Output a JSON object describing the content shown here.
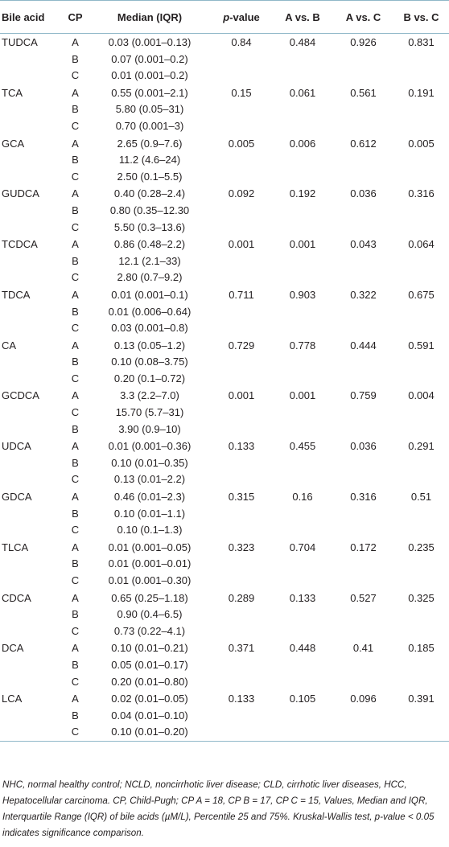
{
  "table": {
    "headers": {
      "bile_acid": "Bile acid",
      "cp": "CP",
      "median": "Median (IQR)",
      "p_value_italic": "p",
      "p_value_rest": "-value",
      "a_vs_b": "A vs. B",
      "a_vs_c": "A vs. C",
      "b_vs_c": "B vs. C"
    },
    "groups": [
      {
        "acid": "TUDCA",
        "p": "0.84",
        "ab": "0.484",
        "ac": "0.926",
        "bc": "0.831",
        "rows": [
          {
            "cp": "A",
            "median": "0.03 (0.001–0.13)"
          },
          {
            "cp": "B",
            "median": "0.07 (0.001–0.2)"
          },
          {
            "cp": "C",
            "median": "0.01 (0.001–0.2)"
          }
        ]
      },
      {
        "acid": "TCA",
        "p": "0.15",
        "ab": "0.061",
        "ac": "0.561",
        "bc": "0.191",
        "rows": [
          {
            "cp": "A",
            "median": "0.55 (0.001–2.1)"
          },
          {
            "cp": "B",
            "median": "5.80 (0.05–31)"
          },
          {
            "cp": "C",
            "median": "0.70 (0.001–3)"
          }
        ]
      },
      {
        "acid": "GCA",
        "p": "0.005",
        "ab": "0.006",
        "ac": "0.612",
        "bc": "0.005",
        "rows": [
          {
            "cp": "A",
            "median": "2.65 (0.9–7.6)"
          },
          {
            "cp": "B",
            "median": "11.2 (4.6–24)"
          },
          {
            "cp": "C",
            "median": "2.50 (0.1–5.5)"
          }
        ]
      },
      {
        "acid": "GUDCA",
        "p": "0.092",
        "ab": "0.192",
        "ac": "0.036",
        "bc": "0.316",
        "rows": [
          {
            "cp": "A",
            "median": "0.40 (0.28–2.4)"
          },
          {
            "cp": "B",
            "median": "0.80 (0.35–12.30"
          },
          {
            "cp": "C",
            "median": "5.50 (0.3–13.6)"
          }
        ]
      },
      {
        "acid": "TCDCA",
        "p": "0.001",
        "ab": "0.001",
        "ac": "0.043",
        "bc": "0.064",
        "rows": [
          {
            "cp": "A",
            "median": "0.86 (0.48–2.2)"
          },
          {
            "cp": "B",
            "median": "12.1 (2.1–33)"
          },
          {
            "cp": "C",
            "median": "2.80 (0.7–9.2)"
          }
        ]
      },
      {
        "acid": "TDCA",
        "p": "0.711",
        "ab": "0.903",
        "ac": "0.322",
        "bc": "0.675",
        "rows": [
          {
            "cp": "A",
            "median": "0.01 (0.001–0.1)"
          },
          {
            "cp": "B",
            "median": "0.01 (0.006–0.64)"
          },
          {
            "cp": "C",
            "median": "0.03 (0.001–0.8)"
          }
        ]
      },
      {
        "acid": "CA",
        "p": "0.729",
        "ab": "0.778",
        "ac": "0.444",
        "bc": "0.591",
        "rows": [
          {
            "cp": "A",
            "median": "0.13 (0.05–1.2)"
          },
          {
            "cp": "B",
            "median": "0.10 (0.08–3.75)"
          },
          {
            "cp": "C",
            "median": "0.20 (0.1–0.72)"
          }
        ]
      },
      {
        "acid": "GCDCA",
        "p": "0.001",
        "ab": "0.001",
        "ac": "0.759",
        "bc": "0.004",
        "rows": [
          {
            "cp": "A",
            "median": "3.3 (2.2–7.0)"
          },
          {
            "cp": "C",
            "median": "15.70 (5.7–31)"
          },
          {
            "cp": "B",
            "median": "3.90 (0.9–10)"
          }
        ]
      },
      {
        "acid": "UDCA",
        "p": "0.133",
        "ab": "0.455",
        "ac": "0.036",
        "bc": "0.291",
        "rows": [
          {
            "cp": "A",
            "median": "0.01 (0.001–0.36)"
          },
          {
            "cp": "B",
            "median": "0.10 (0.01–0.35)"
          },
          {
            "cp": "C",
            "median": "0.13 (0.01–2.2)"
          }
        ]
      },
      {
        "acid": "GDCA",
        "p": "0.315",
        "ab": "0.16",
        "ac": "0.316",
        "bc": "0.51",
        "rows": [
          {
            "cp": "A",
            "median": "0.46 (0.01–2.3)"
          },
          {
            "cp": "B",
            "median": "0.10 (0.01–1.1)"
          },
          {
            "cp": "C",
            "median": "0.10 (0.1–1.3)"
          }
        ]
      },
      {
        "acid": "TLCA",
        "p": "0.323",
        "ab": "0.704",
        "ac": "0.172",
        "bc": "0.235",
        "rows": [
          {
            "cp": "A",
            "median": "0.01 (0.001–0.05)"
          },
          {
            "cp": "B",
            "median": "0.01 (0.001–0.01)"
          },
          {
            "cp": "C",
            "median": "0.01 (0.001–0.30)"
          }
        ]
      },
      {
        "acid": "CDCA",
        "p": "0.289",
        "ab": "0.133",
        "ac": "0.527",
        "bc": "0.325",
        "rows": [
          {
            "cp": "A",
            "median": "0.65 (0.25–1.18)"
          },
          {
            "cp": "B",
            "median": "0.90 (0.4–6.5)"
          },
          {
            "cp": "C",
            "median": "0.73 (0.22–4.1)"
          }
        ]
      },
      {
        "acid": "DCA",
        "p": "0.371",
        "ab": "0.448",
        "ac": "0.41",
        "bc": "0.185",
        "rows": [
          {
            "cp": "A",
            "median": "0.10 (0.01–0.21)"
          },
          {
            "cp": "B",
            "median": "0.05 (0.01–0.17)"
          },
          {
            "cp": "C",
            "median": "0.20 (0.01–0.80)"
          }
        ]
      },
      {
        "acid": "LCA",
        "p": "0.133",
        "ab": "0.105",
        "ac": "0.096",
        "bc": "0.391",
        "rows": [
          {
            "cp": "A",
            "median": "0.02 (0.01–0.05)"
          },
          {
            "cp": "B",
            "median": "0.04 (0.01–0.10)"
          },
          {
            "cp": "C",
            "median": "0.10 (0.01–0.20)"
          }
        ]
      }
    ]
  },
  "footnote": "NHC, normal healthy control; NCLD, noncirrhotic liver disease; CLD, cirrhotic liver diseases, HCC, Hepatocellular carcinoma. CP, Child-Pugh; CP A = 18, CP B = 17, CP C = 15, Values, Median and IQR, Interquartile Range (IQR) of bile acids (µM/L), Percentile 25 and 75%. Kruskal-Wallis test, p-value < 0.05 indicates significance comparison.",
  "colors": {
    "rule": "#8fb7c8",
    "text": "#231f20"
  }
}
